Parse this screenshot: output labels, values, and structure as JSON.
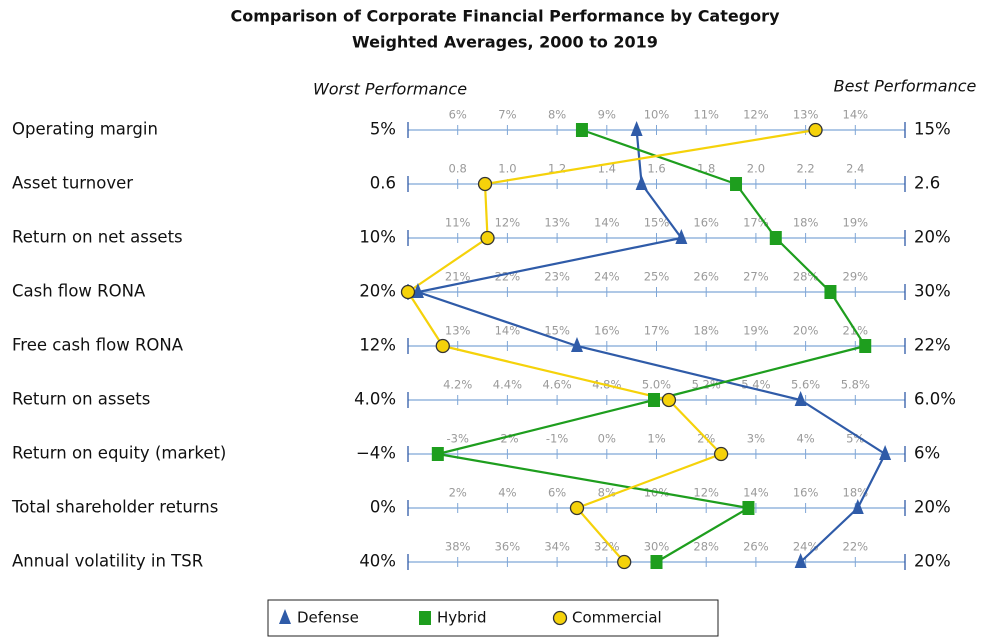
{
  "chart_data": {
    "type": "parallel",
    "title": "Comparison of Corporate Financial Performance by Category",
    "subtitle": "Weighted Averages, 2000 to 2019",
    "left_heading": "Worst Performance",
    "right_heading": "Best Performance",
    "rows": [
      {
        "label": "Operating margin",
        "range": [
          {
            "value": 5,
            "label": "5%"
          },
          {
            "value": 15,
            "label": "15%"
          }
        ],
        "ticks": [
          {
            "value": 6,
            "label": "6%"
          },
          {
            "value": 7,
            "label": "7%"
          },
          {
            "value": 8,
            "label": "8%"
          },
          {
            "value": 9,
            "label": "9%"
          },
          {
            "value": 10,
            "label": "10%"
          },
          {
            "value": 11,
            "label": "11%"
          },
          {
            "value": 12,
            "label": "12%"
          },
          {
            "value": 13,
            "label": "13%"
          },
          {
            "value": 14,
            "label": "14%"
          }
        ]
      },
      {
        "label": "Asset turnover",
        "range": [
          0.6,
          2.6
        ],
        "ticks": [
          0.8,
          {
            "value": 1,
            "label": "1.0"
          },
          1.2,
          1.4,
          1.6,
          1.8,
          {
            "value": 2,
            "label": "2.0"
          },
          2.2,
          2.4
        ]
      },
      {
        "label": "Return on net assets",
        "range": [
          {
            "value": 10,
            "label": "10%"
          },
          {
            "value": 20,
            "label": "20%"
          }
        ],
        "ticks": [
          {
            "value": 11,
            "label": "11%"
          },
          {
            "value": 12,
            "label": "12%"
          },
          {
            "value": 13,
            "label": "13%"
          },
          {
            "value": 14,
            "label": "14%"
          },
          {
            "value": 15,
            "label": "15%"
          },
          {
            "value": 16,
            "label": "16%"
          },
          {
            "value": 17,
            "label": "17%"
          },
          {
            "value": 18,
            "label": "18%"
          },
          {
            "value": 19,
            "label": "19%"
          }
        ]
      },
      {
        "label": "Cash flow RONA",
        "range": [
          {
            "value": 20,
            "label": "20%"
          },
          {
            "value": 30,
            "label": "30%"
          }
        ],
        "ticks": [
          {
            "value": 21,
            "label": "21%"
          },
          {
            "value": 22,
            "label": "22%"
          },
          {
            "value": 23,
            "label": "23%"
          },
          {
            "value": 24,
            "label": "24%"
          },
          {
            "value": 25,
            "label": "25%"
          },
          {
            "value": 26,
            "label": "26%"
          },
          {
            "value": 27,
            "label": "27%"
          },
          {
            "value": 28,
            "label": "28%"
          },
          {
            "value": 29,
            "label": "29%"
          }
        ]
      },
      {
        "label": "Free cash flow RONA",
        "range": [
          {
            "value": 12,
            "label": "12%"
          },
          {
            "value": 22,
            "label": "22%"
          }
        ],
        "ticks": [
          {
            "value": 13,
            "label": "13%"
          },
          {
            "value": 14,
            "label": "14%"
          },
          {
            "value": 15,
            "label": "15%"
          },
          {
            "value": 16,
            "label": "16%"
          },
          {
            "value": 17,
            "label": "17%"
          },
          {
            "value": 18,
            "label": "18%"
          },
          {
            "value": 19,
            "label": "19%"
          },
          {
            "value": 20,
            "label": "20%"
          },
          {
            "value": 21,
            "label": "21%"
          }
        ]
      },
      {
        "label": "Return on assets",
        "range": [
          {
            "value": 4,
            "label": "4.0%"
          },
          {
            "value": 6,
            "label": "6.0%"
          }
        ],
        "ticks": [
          {
            "value": 4.2,
            "label": "4.2%"
          },
          {
            "value": 4.4,
            "label": "4.4%"
          },
          {
            "value": 4.6,
            "label": "4.6%"
          },
          {
            "value": 4.8,
            "label": "4.8%"
          },
          {
            "value": 5,
            "label": "5.0%"
          },
          {
            "value": 5.2,
            "label": "5.2%"
          },
          {
            "value": 5.4,
            "label": "5.4%"
          },
          {
            "value": 5.6,
            "label": "5.6%"
          },
          {
            "value": 5.8,
            "label": "5.8%"
          }
        ]
      },
      {
        "label": "Return on equity (market)",
        "range": [
          {
            "value": -4,
            "label": "−4%"
          },
          {
            "value": 6,
            "label": "6%"
          }
        ],
        "ticks": [
          {
            "value": -3,
            "label": "-3%"
          },
          {
            "value": -2,
            "label": "-2%"
          },
          {
            "value": -1,
            "label": "-1%"
          },
          {
            "value": 0,
            "label": "0%"
          },
          {
            "value": 1,
            "label": "1%"
          },
          {
            "value": 2,
            "label": "2%"
          },
          {
            "value": 3,
            "label": "3%"
          },
          {
            "value": 4,
            "label": "4%"
          },
          {
            "value": 5,
            "label": "5%"
          }
        ]
      },
      {
        "label": "Total shareholder returns",
        "range": [
          {
            "value": 0,
            "label": "0%"
          },
          {
            "value": 20,
            "label": "20%"
          }
        ],
        "ticks": [
          {
            "value": 2,
            "label": "2%"
          },
          {
            "value": 4,
            "label": "4%"
          },
          {
            "value": 6,
            "label": "6%"
          },
          {
            "value": 8,
            "label": "8%"
          },
          {
            "value": 10,
            "label": "10%"
          },
          {
            "value": 12,
            "label": "12%"
          },
          {
            "value": 14,
            "label": "14%"
          },
          {
            "value": 16,
            "label": "16%"
          },
          {
            "value": 18,
            "label": "18%"
          }
        ]
      },
      {
        "label": "Annual volatility in TSR",
        "range": [
          {
            "value": 40,
            "label": "40%"
          },
          {
            "value": 20,
            "label": "20%"
          }
        ],
        "ticks": [
          {
            "value": 38,
            "label": "38%"
          },
          {
            "value": 36,
            "label": "36%"
          },
          {
            "value": 34,
            "label": "34%"
          },
          {
            "value": 32,
            "label": "32%"
          },
          {
            "value": 30,
            "label": "30%"
          },
          {
            "value": 28,
            "label": "28%"
          },
          {
            "value": 26,
            "label": "26%"
          },
          {
            "value": 24,
            "label": "24%"
          },
          {
            "value": 22,
            "label": "22%"
          }
        ]
      }
    ],
    "series": [
      {
        "name": "Defense",
        "color": "#2f5ba8",
        "marker": "triangle",
        "values": [
          9.6,
          1.54,
          15.5,
          20.2,
          15.4,
          5.58,
          5.6,
          18.1,
          24.2
        ]
      },
      {
        "name": "Hybrid",
        "color": "#1e9e1e",
        "marker": "square",
        "values": [
          8.5,
          1.92,
          17.4,
          28.5,
          21.2,
          4.99,
          -3.4,
          13.7,
          30.0
        ]
      },
      {
        "name": "Commercial",
        "color": "#f5d20a",
        "marker": "circle",
        "values": [
          13.2,
          0.91,
          11.6,
          20.0,
          12.7,
          5.05,
          2.3,
          6.8,
          31.3
        ]
      }
    ]
  }
}
